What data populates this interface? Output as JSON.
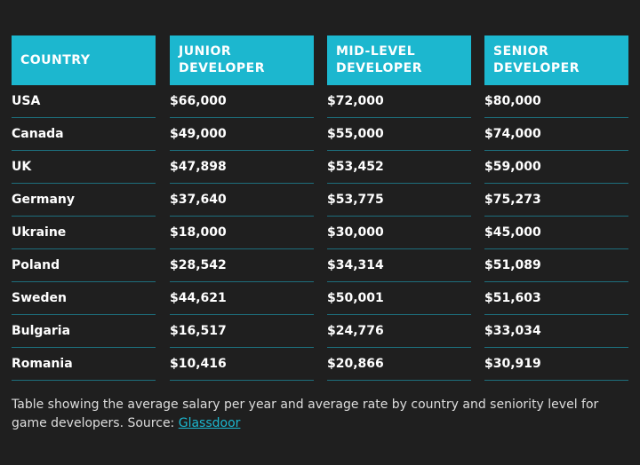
{
  "table": {
    "header": [
      "COUNTRY",
      "JUNIOR DEVELOPER",
      "MID-LEVEL DEVELOPER",
      "SENIOR DEVELOPER"
    ],
    "rows": [
      [
        "USA",
        "$66,000",
        "$72,000",
        "$80,000"
      ],
      [
        "Canada",
        "$49,000",
        "$55,000",
        "$74,000"
      ],
      [
        "UK",
        "$47,898",
        "$53,452",
        "$59,000"
      ],
      [
        "Germany",
        "$37,640",
        "$53,775",
        "$75,273"
      ],
      [
        "Ukraine",
        "$18,000",
        "$30,000",
        "$45,000"
      ],
      [
        "Poland",
        "$28,542",
        "$34,314",
        "$51,089"
      ],
      [
        "Sweden",
        "$44,621",
        "$50,001",
        "$51,603"
      ],
      [
        "Bulgaria",
        "$16,517",
        "$24,776",
        "$33,034"
      ],
      [
        "Romania",
        "$10,416",
        "$20,866",
        "$30,919"
      ]
    ]
  },
  "caption": {
    "text": "Table showing the average salary per year and average rate by country and seniority level for game developers. Source: ",
    "link": "Glassdoor"
  }
}
